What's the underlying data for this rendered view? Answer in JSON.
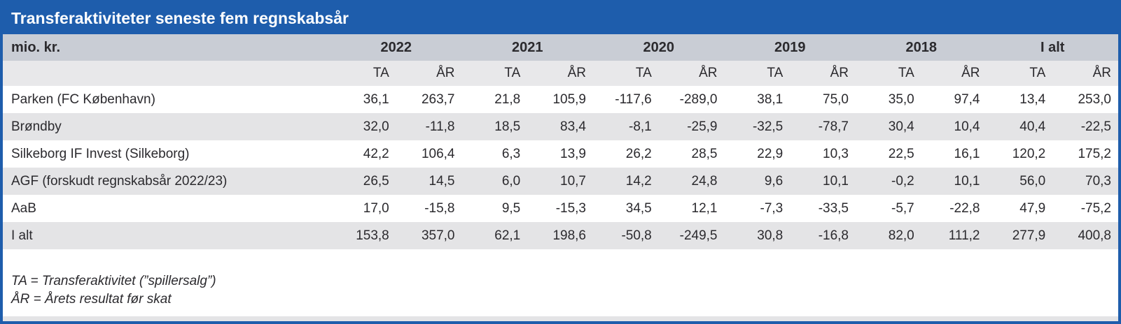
{
  "title": "Transferaktiviteter seneste fem regnskabsår",
  "colors": {
    "accent_blue": "#1e5dac",
    "year_header_gray": "#c9cdd5",
    "subheader_gray": "#e8e8ea",
    "zebra_gray": "#e4e4e6",
    "text_dark": "#2b2a2e",
    "title_text": "#ffffff"
  },
  "chart_data": {
    "type": "table",
    "title": "Transferaktiviteter seneste fem regnskabsår",
    "unit_label": "mio. kr.",
    "year_groups": [
      "2022",
      "2021",
      "2020",
      "2019",
      "2018",
      "I alt"
    ],
    "sub_columns": [
      "TA",
      "ÅR"
    ],
    "rows": [
      {
        "name": "Parken (FC København)",
        "values": [
          "36,1",
          "263,7",
          "21,8",
          "105,9",
          "-117,6",
          "-289,0",
          "38,1",
          "75,0",
          "35,0",
          "97,4",
          "13,4",
          "253,0"
        ]
      },
      {
        "name": "Brøndby",
        "values": [
          "32,0",
          "-11,8",
          "18,5",
          "83,4",
          "-8,1",
          "-25,9",
          "-32,5",
          "-78,7",
          "30,4",
          "10,4",
          "40,4",
          "-22,5"
        ]
      },
      {
        "name": "Silkeborg IF Invest (Silkeborg)",
        "values": [
          "42,2",
          "106,4",
          "6,3",
          "13,9",
          "26,2",
          "28,5",
          "22,9",
          "10,3",
          "22,5",
          "16,1",
          "120,2",
          "175,2"
        ]
      },
      {
        "name": "AGF (forskudt regnskabsår 2022/23)",
        "values": [
          "26,5",
          "14,5",
          "6,0",
          "10,7",
          "14,2",
          "24,8",
          "9,6",
          "10,1",
          "-0,2",
          "10,1",
          "56,0",
          "70,3"
        ]
      },
      {
        "name": "AaB",
        "values": [
          "17,0",
          "-15,8",
          "9,5",
          "-15,3",
          "34,5",
          "12,1",
          "-7,3",
          "-33,5",
          "-5,7",
          "-22,8",
          "47,9",
          "-75,2"
        ]
      },
      {
        "name": "I alt",
        "values": [
          "153,8",
          "357,0",
          "62,1",
          "198,6",
          "-50,8",
          "-249,5",
          "30,8",
          "-16,8",
          "82,0",
          "111,2",
          "277,9",
          "400,8"
        ]
      }
    ],
    "footnotes": [
      "TA = Transferaktivitet (”spillersalg”)",
      "ÅR = Årets resultat før skat"
    ]
  }
}
